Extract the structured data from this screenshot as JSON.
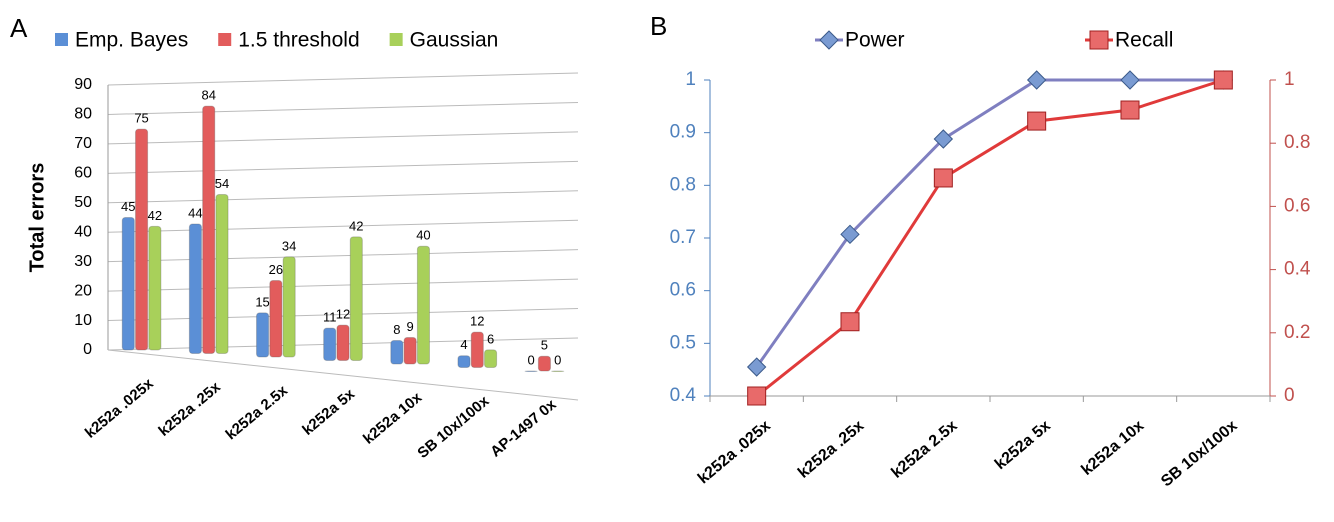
{
  "chart_data": [
    {
      "type": "bar",
      "panel_label": "A",
      "ylabel": "Total errors",
      "categories": [
        "k252a .025x",
        "k252a .25x",
        "k252a 2.5x",
        "k252a 5x",
        "k252a 10x",
        "SB 10x/100x",
        "AP-1497 0x"
      ],
      "series": [
        {
          "name": "Emp. Bayes",
          "color": "#5b8fd6",
          "values": [
            45,
            44,
            15,
            11,
            8,
            4,
            0
          ]
        },
        {
          "name": "1.5 threshold",
          "color": "#e25c5c",
          "values": [
            75,
            84,
            26,
            12,
            9,
            12,
            5
          ]
        },
        {
          "name": "Gaussian",
          "color": "#a8d05a",
          "values": [
            42,
            54,
            34,
            42,
            40,
            6,
            0
          ]
        }
      ],
      "ylim": [
        0,
        90
      ],
      "yticks": [
        0,
        10,
        20,
        30,
        40,
        50,
        60,
        70,
        80,
        90
      ],
      "grid": true,
      "legend": "top"
    },
    {
      "type": "line",
      "panel_label": "B",
      "categories": [
        "k252a .025x",
        "k252a .25x",
        "k252a 2.5x",
        "k252a 5x",
        "k252a 10x",
        "SB 10x/100x"
      ],
      "series": [
        {
          "name": "Power",
          "color": "#7f7fc0",
          "marker_color": "#7a9bd2",
          "marker": "diamond",
          "values": [
            0.455,
            0.707,
            0.888,
            1,
            1,
            1
          ]
        },
        {
          "name": "Recall",
          "color": "#e03a3a",
          "marker_color": "#e86a6a",
          "marker": "square",
          "axis": "y2",
          "values": [
            0,
            0.235,
            0.69,
            0.87,
            0.905,
            1
          ]
        }
      ],
      "ylim": [
        0.4,
        1
      ],
      "yticks": [
        0.4,
        0.5,
        0.6,
        0.7,
        0.8,
        0.9,
        1
      ],
      "y2lim": [
        0,
        1
      ],
      "y2ticks": [
        0,
        0.2,
        0.4,
        0.6,
        0.8,
        1
      ],
      "ycolor": "#4f81bd",
      "y2color": "#c0504d",
      "legend": "top"
    }
  ]
}
